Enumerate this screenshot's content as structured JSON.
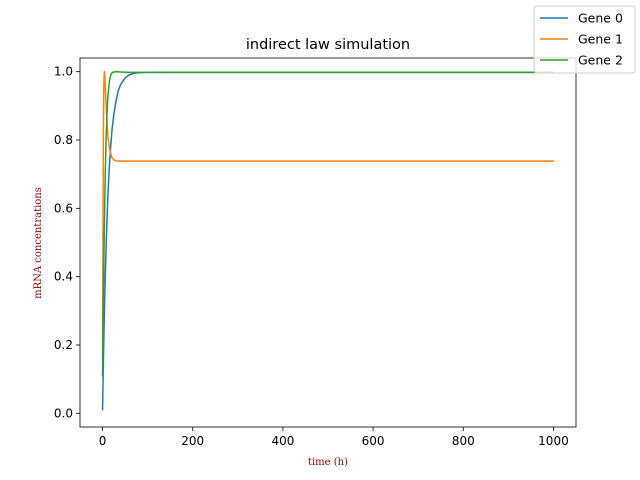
{
  "chart_data": {
    "type": "line",
    "title": "indirect law simulation",
    "xlabel": "time (h)",
    "ylabel": "mRNA concentrations",
    "xlim": [
      -50,
      1050
    ],
    "ylim": [
      -0.04,
      1.04
    ],
    "xticks": [
      0,
      200,
      400,
      600,
      800,
      1000
    ],
    "yticks": [
      0.0,
      0.2,
      0.4,
      0.6,
      0.8,
      1.0
    ],
    "xtick_labels": [
      "0",
      "200",
      "400",
      "600",
      "800",
      "1000"
    ],
    "ytick_labels": [
      "0.0",
      "0.2",
      "0.4",
      "0.6",
      "0.8",
      "1.0"
    ],
    "grid": false,
    "legend_position": "top-right (outside axes)",
    "series": [
      {
        "name": "Gene 0",
        "color": "#1f77b4",
        "x": [
          0,
          2,
          4,
          6,
          8,
          10,
          12,
          15,
          18,
          21,
          25,
          30,
          35,
          40,
          50,
          60,
          70,
          80,
          100,
          150,
          200,
          400,
          600,
          800,
          1000
        ],
        "y": [
          0.01,
          0.16,
          0.29,
          0.4,
          0.49,
          0.57,
          0.64,
          0.72,
          0.78,
          0.83,
          0.875,
          0.915,
          0.945,
          0.962,
          0.982,
          0.991,
          0.995,
          0.997,
          0.998,
          0.998,
          0.998,
          0.998,
          0.998,
          0.998,
          0.998
        ]
      },
      {
        "name": "Gene 1",
        "color": "#ff7f0e",
        "x": [
          0,
          1,
          2,
          3,
          4,
          5,
          6,
          8,
          10,
          12,
          15,
          18,
          21,
          25,
          30,
          40,
          60,
          100,
          200,
          400,
          600,
          800,
          1000
        ],
        "y": [
          0.16,
          0.55,
          0.85,
          0.97,
          1.0,
          0.99,
          0.96,
          0.9,
          0.85,
          0.81,
          0.78,
          0.76,
          0.748,
          0.742,
          0.739,
          0.738,
          0.738,
          0.738,
          0.738,
          0.738,
          0.738,
          0.738,
          0.738
        ]
      },
      {
        "name": "Gene 2",
        "color": "#2ca02c",
        "x": [
          0,
          2,
          4,
          6,
          8,
          10,
          12,
          15,
          18,
          22,
          30,
          40,
          60,
          100,
          200,
          400,
          600,
          800,
          1000
        ],
        "y": [
          0.11,
          0.35,
          0.55,
          0.7,
          0.81,
          0.88,
          0.93,
          0.97,
          0.99,
          0.998,
          1.0,
          0.999,
          0.998,
          0.998,
          0.998,
          0.998,
          0.998,
          0.998,
          0.998
        ]
      }
    ]
  }
}
